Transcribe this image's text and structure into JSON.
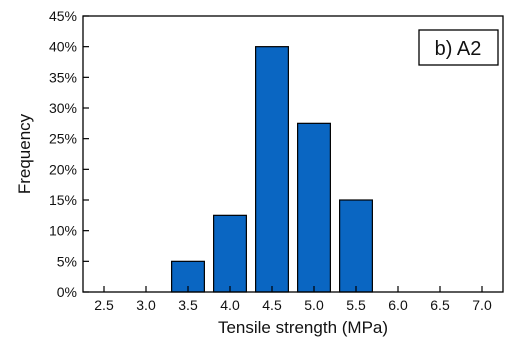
{
  "chart_data": {
    "type": "bar",
    "panel_label": "b) A2",
    "xlabel": "Tensile strength (MPa)",
    "ylabel": "Frequency",
    "x_ticks": [
      "2.5",
      "3.0",
      "3.5",
      "4.0",
      "4.5",
      "5.0",
      "5.5",
      "6.0",
      "6.5",
      "7.0"
    ],
    "y_ticks": [
      "0%",
      "5%",
      "10%",
      "15%",
      "20%",
      "25%",
      "30%",
      "35%",
      "40%",
      "45%"
    ],
    "ylim": [
      0,
      45
    ],
    "xlim": [
      2.25,
      7.25
    ],
    "bars": [
      {
        "x": 3.5,
        "value": 5
      },
      {
        "x": 4.0,
        "value": 12.5
      },
      {
        "x": 4.5,
        "value": 40
      },
      {
        "x": 5.0,
        "value": 27.5
      },
      {
        "x": 5.5,
        "value": 15
      }
    ],
    "bar_color": "#0a66c2",
    "bar_edge_color": "#000000",
    "grid": false
  }
}
